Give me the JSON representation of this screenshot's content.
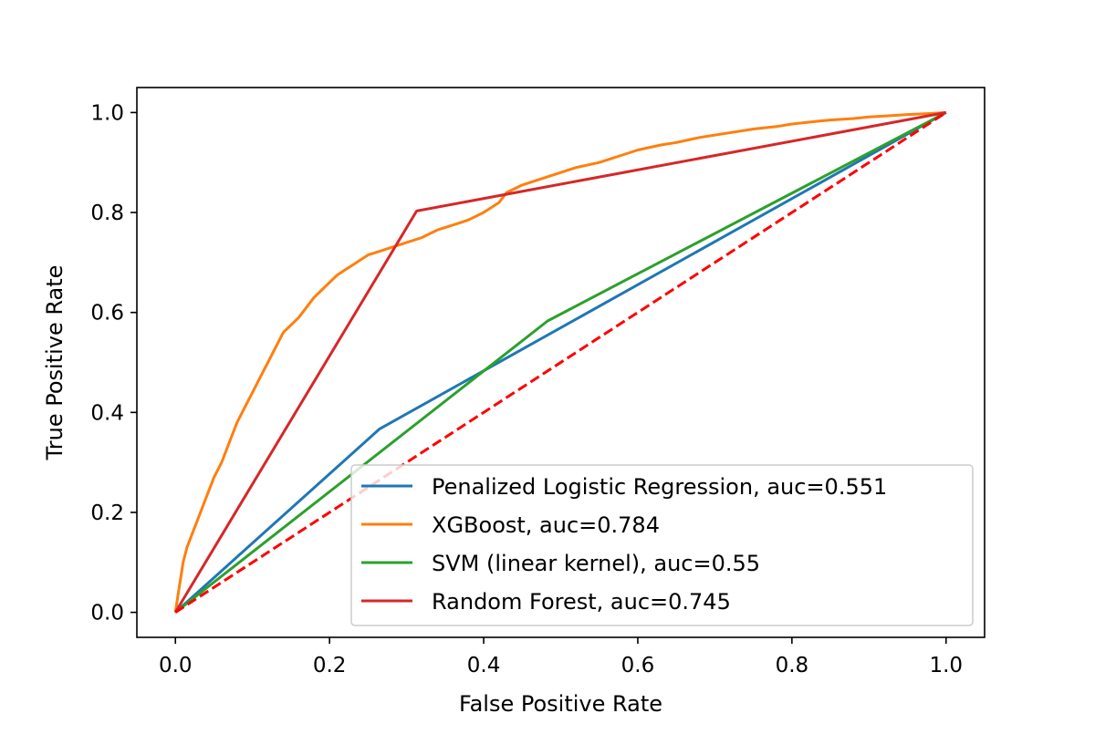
{
  "chart_data": {
    "type": "line",
    "title": "",
    "xlabel": "False Positive Rate",
    "ylabel": "True Positive Rate",
    "xlim": [
      -0.05,
      1.05
    ],
    "ylim": [
      -0.05,
      1.05
    ],
    "x_ticks": [
      "0.0",
      "0.2",
      "0.4",
      "0.6",
      "0.8",
      "1.0"
    ],
    "y_ticks": [
      "0.0",
      "0.2",
      "0.4",
      "0.6",
      "0.8",
      "1.0"
    ],
    "grid": false,
    "legend_position": "lower-right",
    "series": [
      {
        "name": "Penalized Logistic Regression, auc=0.551",
        "color": "#1f77b4",
        "x": [
          0.0,
          0.265,
          1.0
        ],
        "y": [
          0.0,
          0.367,
          1.0
        ]
      },
      {
        "name": "XGBoost, auc=0.784",
        "color": "#ff7f0e",
        "x": [
          0.0,
          0.005,
          0.01,
          0.015,
          0.02,
          0.03,
          0.04,
          0.05,
          0.06,
          0.07,
          0.08,
          0.09,
          0.1,
          0.11,
          0.12,
          0.13,
          0.14,
          0.15,
          0.16,
          0.17,
          0.18,
          0.19,
          0.2,
          0.21,
          0.22,
          0.23,
          0.24,
          0.25,
          0.26,
          0.27,
          0.28,
          0.3,
          0.32,
          0.34,
          0.36,
          0.38,
          0.4,
          0.42,
          0.43,
          0.45,
          0.48,
          0.5,
          0.52,
          0.55,
          0.58,
          0.6,
          0.63,
          0.65,
          0.68,
          0.7,
          0.73,
          0.75,
          0.78,
          0.8,
          0.83,
          0.85,
          0.88,
          0.9,
          0.93,
          0.95,
          0.98,
          1.0
        ],
        "y": [
          0.0,
          0.05,
          0.1,
          0.13,
          0.15,
          0.19,
          0.23,
          0.27,
          0.3,
          0.34,
          0.38,
          0.41,
          0.44,
          0.47,
          0.5,
          0.53,
          0.56,
          0.575,
          0.59,
          0.61,
          0.63,
          0.645,
          0.66,
          0.675,
          0.685,
          0.695,
          0.705,
          0.715,
          0.72,
          0.725,
          0.73,
          0.74,
          0.75,
          0.765,
          0.775,
          0.785,
          0.8,
          0.82,
          0.84,
          0.855,
          0.87,
          0.88,
          0.89,
          0.9,
          0.915,
          0.925,
          0.935,
          0.94,
          0.95,
          0.955,
          0.962,
          0.967,
          0.972,
          0.977,
          0.982,
          0.985,
          0.988,
          0.991,
          0.994,
          0.996,
          0.998,
          1.0
        ]
      },
      {
        "name": "SVM (linear kernel), auc=0.55",
        "color": "#2ca02c",
        "x": [
          0.0,
          0.483,
          1.0
        ],
        "y": [
          0.0,
          0.583,
          1.0
        ]
      },
      {
        "name": "Random Forest, auc=0.745",
        "color": "#d62728",
        "x": [
          0.0,
          0.313,
          1.0
        ],
        "y": [
          0.0,
          0.803,
          1.0
        ]
      }
    ],
    "reference_line": {
      "color": "#ff0000",
      "style": "dashed",
      "x": [
        0.0,
        1.0
      ],
      "y": [
        0.0,
        1.0
      ]
    }
  }
}
